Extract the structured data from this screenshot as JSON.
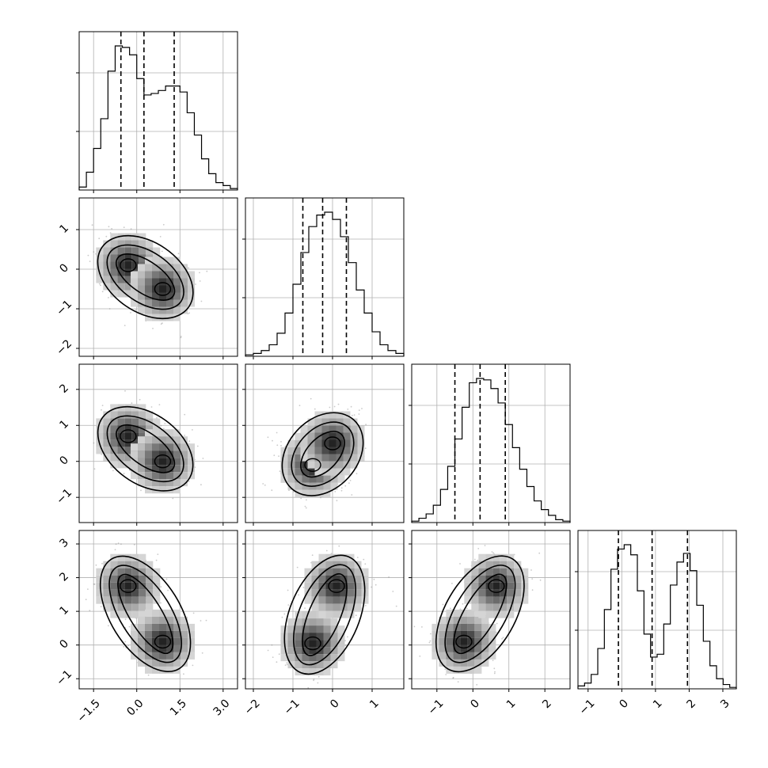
{
  "chart_data": {
    "type": "corner",
    "variables": [
      {
        "range": [
          -2.0,
          3.5
        ],
        "ticks": [
          -1.5,
          0.0,
          1.5,
          3.0
        ],
        "tick_labels": [
          "−1.5",
          "0.0",
          "1.5",
          "3.0"
        ],
        "quantiles": [
          -0.55,
          0.25,
          1.3
        ]
      },
      {
        "range": [
          -2.2,
          1.8
        ],
        "ticks": [
          -2,
          -1,
          0,
          1
        ],
        "tick_labels": [
          "−2",
          "−1",
          "0",
          "1"
        ],
        "quantiles": [
          -0.75,
          -0.25,
          0.35
        ]
      },
      {
        "range": [
          -1.7,
          2.7
        ],
        "ticks": [
          -1,
          0,
          1,
          2
        ],
        "tick_labels": [
          "−1",
          "0",
          "1",
          "2"
        ],
        "quantiles": [
          -0.5,
          0.2,
          0.9
        ]
      },
      {
        "range": [
          -1.3,
          3.4
        ],
        "ticks": [
          -1,
          0,
          1,
          2,
          3
        ],
        "tick_labels": [
          "−1",
          "0",
          "1",
          "2",
          "3"
        ],
        "quantiles": [
          -0.1,
          0.9,
          1.95
        ]
      }
    ],
    "histograms": [
      {
        "values": [
          0.02,
          0.12,
          0.28,
          0.48,
          0.8,
          0.97,
          0.96,
          0.91,
          0.75,
          0.64,
          0.65,
          0.67,
          0.7,
          0.7,
          0.66,
          0.52,
          0.37,
          0.21,
          0.11,
          0.05,
          0.03,
          0.01
        ]
      },
      {
        "values": [
          0.01,
          0.02,
          0.04,
          0.08,
          0.16,
          0.3,
          0.5,
          0.72,
          0.9,
          0.98,
          1.0,
          0.95,
          0.83,
          0.65,
          0.46,
          0.3,
          0.17,
          0.08,
          0.04,
          0.02
        ]
      },
      {
        "values": [
          0.01,
          0.03,
          0.06,
          0.12,
          0.23,
          0.39,
          0.58,
          0.8,
          0.97,
          1.0,
          0.99,
          0.93,
          0.83,
          0.68,
          0.52,
          0.37,
          0.25,
          0.15,
          0.09,
          0.05,
          0.02,
          0.01
        ]
      },
      {
        "values": [
          0.02,
          0.04,
          0.1,
          0.28,
          0.55,
          0.83,
          0.97,
          1.0,
          0.93,
          0.68,
          0.38,
          0.22,
          0.24,
          0.45,
          0.72,
          0.88,
          0.94,
          0.82,
          0.58,
          0.33,
          0.16,
          0.07,
          0.03,
          0.01
        ]
      }
    ],
    "density_peaks": [
      {
        "x_var": 0,
        "y_var": 1,
        "peaks": [
          [
            -0.3,
            0.1
          ],
          [
            0.9,
            -0.5
          ]
        ]
      },
      {
        "x_var": 0,
        "y_var": 2,
        "peaks": [
          [
            -0.3,
            0.7
          ],
          [
            0.9,
            0.0
          ]
        ]
      },
      {
        "x_var": 1,
        "y_var": 2,
        "peaks": [
          [
            -0.5,
            -0.1
          ],
          [
            0.0,
            0.5
          ]
        ]
      },
      {
        "x_var": 0,
        "y_var": 3,
        "peaks": [
          [
            -0.3,
            1.75
          ],
          [
            0.9,
            0.1
          ]
        ]
      },
      {
        "x_var": 1,
        "y_var": 3,
        "peaks": [
          [
            -0.5,
            0.05
          ],
          [
            0.1,
            1.75
          ]
        ]
      },
      {
        "x_var": 2,
        "y_var": 3,
        "peaks": [
          [
            -0.25,
            0.1
          ],
          [
            0.65,
            1.75
          ]
        ]
      }
    ],
    "grid": true,
    "quantile_lines": "dashed"
  }
}
